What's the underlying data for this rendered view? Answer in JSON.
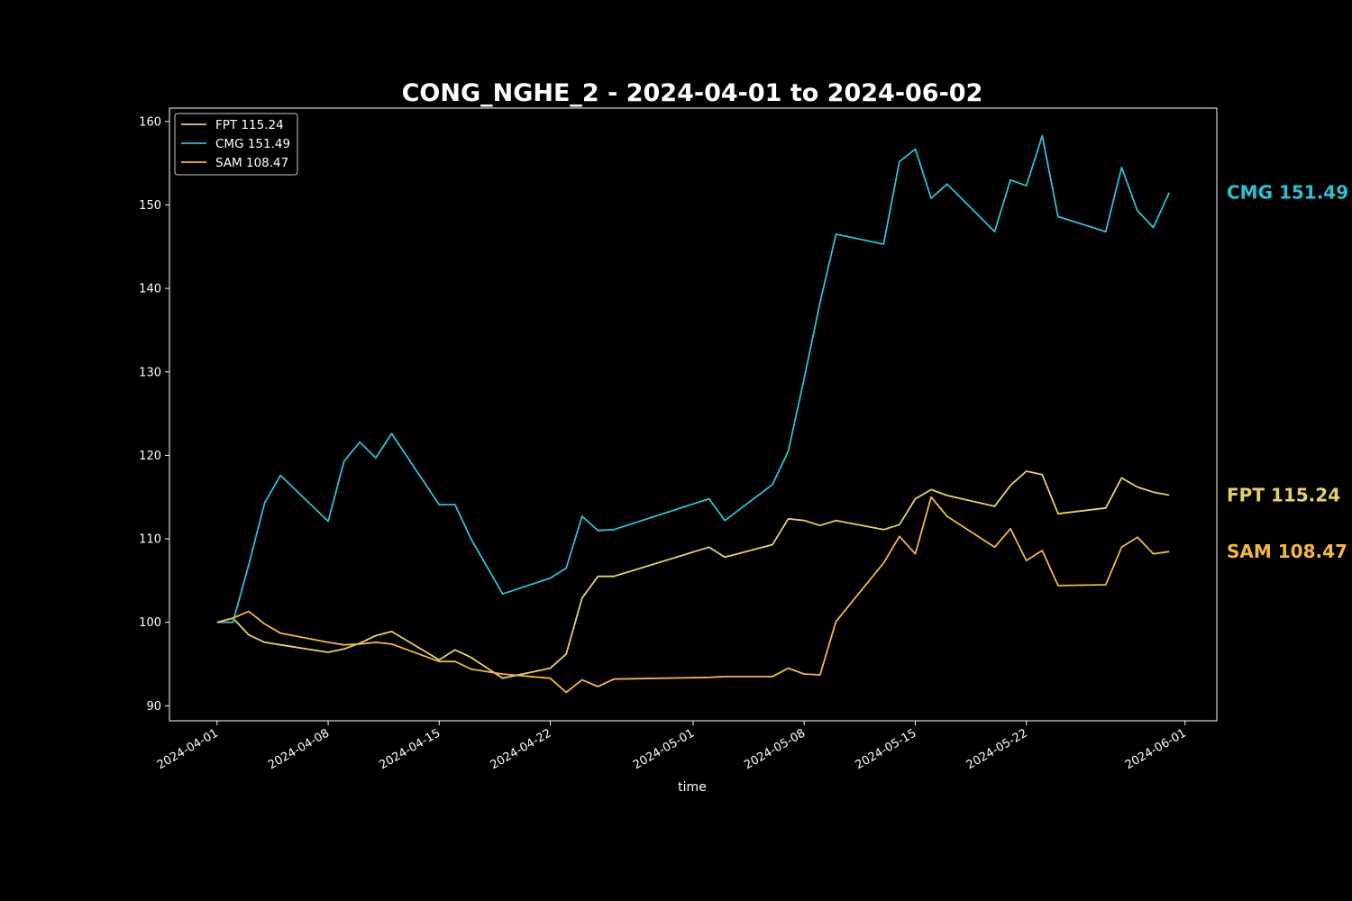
{
  "chart_data": {
    "type": "line",
    "title": "CONG_NGHE_2 - 2024-04-01 to 2024-06-02",
    "xlabel": "time",
    "ylabel": "",
    "x_ticks": [
      "2024-04-01",
      "2024-04-08",
      "2024-04-15",
      "2024-04-22",
      "2024-05-01",
      "2024-05-08",
      "2024-05-15",
      "2024-05-22",
      "2024-06-01"
    ],
    "y_ticks": [
      90,
      100,
      110,
      120,
      130,
      140,
      150,
      160
    ],
    "xlim": [
      "2024-03-29",
      "2024-06-03"
    ],
    "ylim": [
      88.2,
      161.6
    ],
    "grid": false,
    "legend_position": "top-left",
    "x": [
      "2024-04-01",
      "2024-04-02",
      "2024-04-03",
      "2024-04-04",
      "2024-04-05",
      "2024-04-08",
      "2024-04-09",
      "2024-04-10",
      "2024-04-11",
      "2024-04-12",
      "2024-04-15",
      "2024-04-16",
      "2024-04-17",
      "2024-04-19",
      "2024-04-22",
      "2024-04-23",
      "2024-04-24",
      "2024-04-25",
      "2024-04-26",
      "2024-05-02",
      "2024-05-03",
      "2024-05-06",
      "2024-05-07",
      "2024-05-08",
      "2024-05-09",
      "2024-05-10",
      "2024-05-13",
      "2024-05-14",
      "2024-05-15",
      "2024-05-16",
      "2024-05-17",
      "2024-05-20",
      "2024-05-21",
      "2024-05-22",
      "2024-05-23",
      "2024-05-24",
      "2024-05-27",
      "2024-05-28",
      "2024-05-29",
      "2024-05-30",
      "2024-05-31"
    ],
    "series": [
      {
        "name": "FPT 115.24",
        "color": "#e8d06c",
        "end_label": "FPT 115.24",
        "values": [
          100.0,
          100.5,
          98.5,
          97.6,
          97.3,
          96.4,
          96.8,
          97.5,
          98.4,
          98.9,
          95.5,
          96.7,
          95.8,
          93.3,
          94.5,
          96.2,
          102.9,
          105.5,
          105.5,
          109.0,
          107.8,
          109.3,
          112.4,
          112.2,
          111.6,
          112.2,
          111.1,
          111.7,
          114.8,
          115.9,
          115.2,
          113.9,
          116.4,
          118.1,
          117.7,
          113.0,
          113.7,
          117.3,
          116.2,
          115.6,
          115.24
        ]
      },
      {
        "name": "CMG 151.49",
        "color": "#2fc0d6",
        "end_label": "CMG 151.49",
        "values": [
          100.0,
          100.0,
          106.9,
          114.3,
          117.6,
          112.1,
          119.3,
          121.6,
          119.7,
          122.6,
          114.1,
          114.1,
          110.0,
          103.4,
          105.3,
          106.5,
          112.7,
          111.0,
          111.1,
          114.8,
          112.2,
          116.5,
          120.5,
          129.2,
          138.3,
          146.5,
          145.3,
          155.2,
          156.7,
          150.8,
          152.5,
          146.8,
          153.0,
          152.3,
          158.3,
          148.6,
          146.8,
          154.5,
          149.3,
          147.3,
          151.49
        ]
      },
      {
        "name": "SAM 108.47",
        "color": "#f3b845",
        "end_label": "SAM 108.47",
        "values": [
          100.0,
          100.5,
          101.3,
          99.8,
          98.7,
          97.6,
          97.3,
          97.4,
          97.6,
          97.4,
          95.3,
          95.3,
          94.4,
          93.8,
          93.3,
          91.6,
          93.1,
          92.3,
          93.2,
          93.4,
          93.5,
          93.5,
          94.5,
          93.8,
          93.7,
          100.1,
          107.1,
          110.3,
          108.2,
          115.0,
          112.7,
          109.0,
          111.2,
          107.4,
          108.6,
          104.4,
          104.5,
          109.0,
          110.2,
          108.2,
          108.47
        ]
      }
    ]
  }
}
